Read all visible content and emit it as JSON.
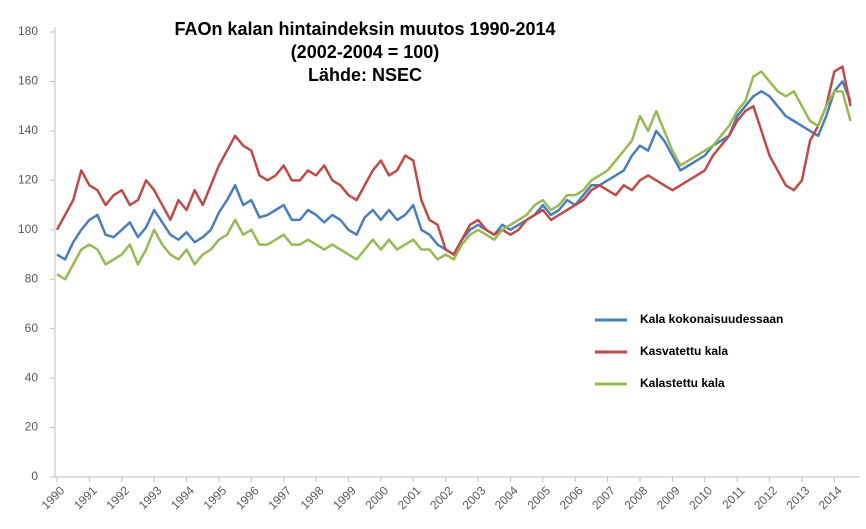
{
  "chart_data": {
    "type": "line",
    "title": "FAOn kalan hintaindeksin muutos 1990-2014",
    "subtitle": "(2002-2004 = 100)",
    "source": "Lähde: NSEC",
    "x": [
      1990,
      1990.25,
      1990.5,
      1990.75,
      1991,
      1991.25,
      1991.5,
      1991.75,
      1992,
      1992.25,
      1992.5,
      1992.75,
      1993,
      1993.25,
      1993.5,
      1993.75,
      1994,
      1994.25,
      1994.5,
      1994.75,
      1995,
      1995.25,
      1995.5,
      1995.75,
      1996,
      1996.25,
      1996.5,
      1996.75,
      1997,
      1997.25,
      1997.5,
      1997.75,
      1998,
      1998.25,
      1998.5,
      1998.75,
      1999,
      1999.25,
      1999.5,
      1999.75,
      2000,
      2000.25,
      2000.5,
      2000.75,
      2001,
      2001.25,
      2001.5,
      2001.75,
      2002,
      2002.25,
      2002.5,
      2002.75,
      2003,
      2003.25,
      2003.5,
      2003.75,
      2004,
      2004.25,
      2004.5,
      2004.75,
      2005,
      2005.25,
      2005.5,
      2005.75,
      2006,
      2006.25,
      2006.5,
      2006.75,
      2007,
      2007.25,
      2007.5,
      2007.75,
      2008,
      2008.25,
      2008.5,
      2008.75,
      2009,
      2009.25,
      2009.5,
      2009.75,
      2010,
      2010.25,
      2010.5,
      2010.75,
      2011,
      2011.25,
      2011.5,
      2011.75,
      2012,
      2012.25,
      2012.5,
      2012.75,
      2013,
      2013.25,
      2013.5,
      2013.75,
      2014,
      2014.25,
      2014.5
    ],
    "series": [
      {
        "name": "Kala kokonaisuudessaan",
        "color": "#4a7ebb",
        "values": [
          90,
          88,
          95,
          100,
          104,
          106,
          98,
          97,
          100,
          103,
          97,
          101,
          108,
          103,
          98,
          96,
          99,
          95,
          97,
          100,
          107,
          112,
          118,
          110,
          112,
          105,
          106,
          108,
          110,
          104,
          104,
          108,
          106,
          103,
          106,
          104,
          100,
          98,
          105,
          108,
          104,
          108,
          104,
          106,
          110,
          100,
          98,
          94,
          92,
          90,
          96,
          100,
          102,
          100,
          98,
          102,
          100,
          102,
          104,
          106,
          110,
          106,
          108,
          112,
          110,
          114,
          118,
          118,
          120,
          122,
          124,
          130,
          134,
          132,
          140,
          136,
          130,
          124,
          126,
          128,
          130,
          134,
          136,
          138,
          146,
          150,
          154,
          156,
          154,
          150,
          146,
          144,
          142,
          140,
          138,
          146,
          156,
          160,
          152
        ]
      },
      {
        "name": "Kasvatettu kala",
        "color": "#be4b48",
        "values": [
          100,
          106,
          112,
          124,
          118,
          116,
          110,
          114,
          116,
          110,
          112,
          120,
          116,
          110,
          104,
          112,
          108,
          116,
          110,
          118,
          126,
          132,
          138,
          134,
          132,
          122,
          120,
          122,
          126,
          120,
          120,
          124,
          122,
          126,
          120,
          118,
          114,
          112,
          118,
          124,
          128,
          122,
          124,
          130,
          128,
          112,
          104,
          102,
          92,
          90,
          96,
          102,
          104,
          100,
          98,
          100,
          98,
          100,
          104,
          106,
          108,
          104,
          106,
          108,
          110,
          112,
          116,
          118,
          116,
          114,
          118,
          116,
          120,
          122,
          120,
          118,
          116,
          118,
          120,
          122,
          124,
          130,
          134,
          138,
          144,
          148,
          150,
          140,
          130,
          124,
          118,
          116,
          120,
          136,
          142,
          150,
          164,
          166,
          150
        ]
      },
      {
        "name": "Kalastettu kala",
        "color": "#98b954",
        "values": [
          82,
          80,
          86,
          92,
          94,
          92,
          86,
          88,
          90,
          94,
          86,
          92,
          100,
          94,
          90,
          88,
          92,
          86,
          90,
          92,
          96,
          98,
          104,
          98,
          100,
          94,
          94,
          96,
          98,
          94,
          94,
          96,
          94,
          92,
          94,
          92,
          90,
          88,
          92,
          96,
          92,
          96,
          92,
          94,
          96,
          92,
          92,
          88,
          90,
          88,
          94,
          98,
          100,
          98,
          96,
          100,
          102,
          104,
          106,
          110,
          112,
          108,
          110,
          114,
          114,
          116,
          120,
          122,
          124,
          128,
          132,
          136,
          146,
          140,
          148,
          140,
          132,
          126,
          128,
          130,
          132,
          134,
          138,
          142,
          148,
          152,
          162,
          164,
          160,
          156,
          154,
          156,
          150,
          144,
          142,
          150,
          156,
          156,
          144
        ]
      }
    ],
    "xlim": [
      1990,
      2014.7
    ],
    "xticks": [
      1990,
      1991,
      1992,
      1993,
      1994,
      1995,
      1996,
      1997,
      1998,
      1999,
      2000,
      2001,
      2002,
      2003,
      2004,
      2005,
      2006,
      2007,
      2008,
      2009,
      2010,
      2011,
      2012,
      2013,
      2014
    ],
    "ylim": [
      0,
      180
    ],
    "yticks": [
      0,
      20,
      40,
      60,
      80,
      100,
      120,
      140,
      160,
      180
    ]
  }
}
